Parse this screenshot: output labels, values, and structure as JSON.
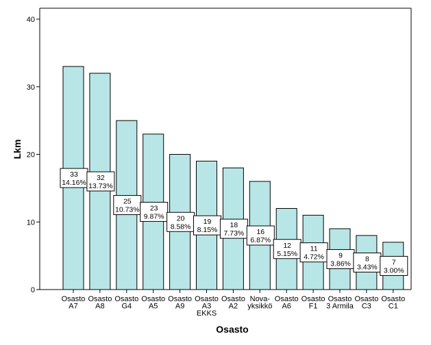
{
  "chart_data": {
    "type": "bar",
    "xlabel": "Osasto",
    "ylabel": "Lkm",
    "ylim": [
      0,
      40
    ],
    "yticks": [
      0,
      10,
      20,
      30,
      40
    ],
    "grid": false,
    "bar_color": "#b8e6e6",
    "categories": [
      [
        "Osasto",
        "A7"
      ],
      [
        "Osasto",
        "A8"
      ],
      [
        "Osasto",
        "G4"
      ],
      [
        "Osasto",
        "A5"
      ],
      [
        "Osasto",
        "A9"
      ],
      [
        "Osasto",
        "A3",
        "EKKS"
      ],
      [
        "Osasto",
        "A2"
      ],
      [
        "Nova-",
        "yksikkö"
      ],
      [
        "Osasto",
        "A6"
      ],
      [
        "Osasto",
        "F1"
      ],
      [
        "Osasto",
        "3 Armila"
      ],
      [
        "Osasto",
        "C3"
      ],
      [
        "Osasto",
        "C1"
      ]
    ],
    "values": [
      33,
      32,
      25,
      23,
      20,
      19,
      18,
      16,
      12,
      11,
      9,
      8,
      7
    ],
    "percent_labels": [
      "14.16%",
      "13.73%",
      "10.73%",
      "9.87%",
      "8.58%",
      "8.15%",
      "7.73%",
      "6.87%",
      "5.15%",
      "4.72%",
      "3.86%",
      "3.43%",
      "3.00%"
    ]
  }
}
